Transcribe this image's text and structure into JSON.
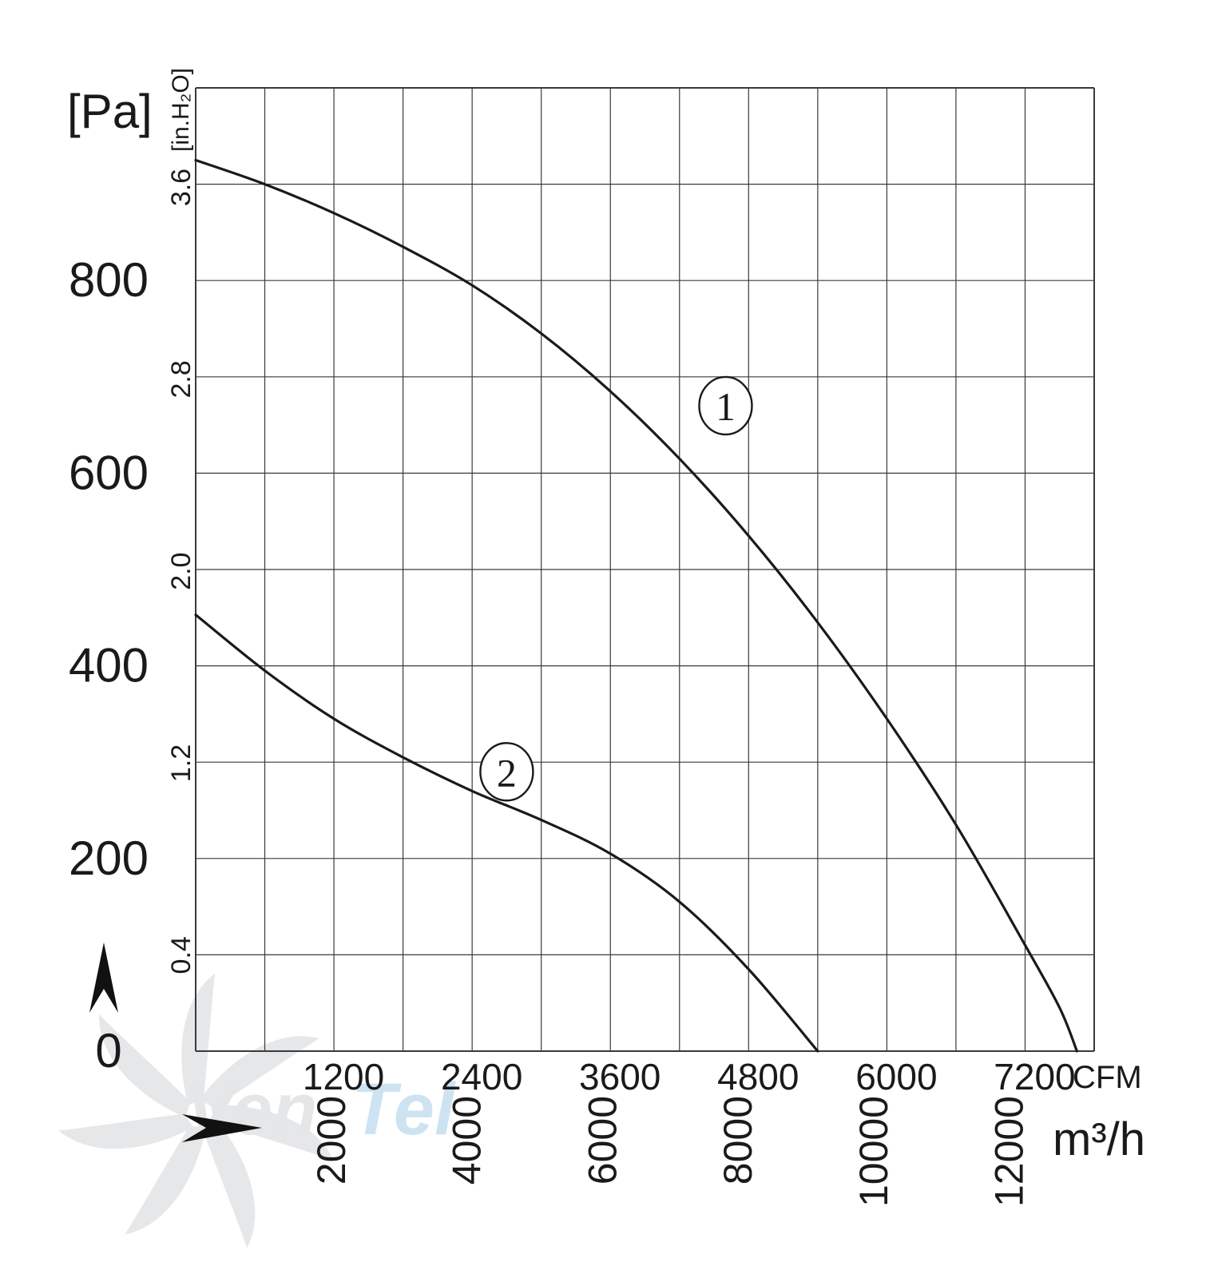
{
  "chart_data": {
    "type": "line",
    "title": "",
    "xlabel": "CFM",
    "xlabel_secondary": "m³/h",
    "ylabel": "[Pa]",
    "ylabel_secondary": "[in.H₂O]",
    "xlim": [
      0,
      7800
    ],
    "ylim": [
      0,
      1000
    ],
    "grid": true,
    "x_ticks": [
      1200,
      2400,
      3600,
      4800,
      6000,
      7200
    ],
    "x_tick_labels": [
      "1200",
      "2400",
      "3600",
      "4800",
      "6000",
      "7200"
    ],
    "x2_ticks": [
      2000,
      4000,
      6000,
      8000,
      10000,
      12000
    ],
    "x2_tick_labels": [
      "2000",
      "4000",
      "6000",
      "8000",
      "10000",
      "12000"
    ],
    "y_ticks": [
      0,
      200,
      400,
      600,
      800
    ],
    "y_tick_labels": [
      "0",
      "200",
      "400",
      "600",
      "800"
    ],
    "y2_ticks": [
      0.4,
      1.2,
      2.0,
      2.8,
      3.6
    ],
    "y2_tick_labels": [
      "0.4",
      "1.2",
      "2.0",
      "2.8",
      "3.6"
    ],
    "series": [
      {
        "name": "①",
        "label_at": [
          4600,
          670
        ],
        "x": [
          0,
          600,
          1200,
          1800,
          2400,
          3000,
          3600,
          4200,
          4800,
          5400,
          6000,
          6600,
          7200,
          7500,
          7650
        ],
        "y": [
          925,
          900,
          870,
          835,
          795,
          745,
          685,
          615,
          535,
          445,
          345,
          235,
          110,
          45,
          0
        ]
      },
      {
        "name": "②",
        "label_at": [
          2700,
          290
        ],
        "x": [
          0,
          600,
          1200,
          1800,
          2400,
          3000,
          3600,
          4200,
          4800,
          5400
        ],
        "y": [
          453,
          395,
          345,
          305,
          270,
          240,
          205,
          155,
          85,
          0
        ]
      }
    ]
  },
  "axis_arrows": {
    "y_arrow": "arrow-up-icon",
    "x_arrow": "arrow-right-icon"
  },
  "watermark": {
    "logo": "fan-logo-icon",
    "text_a": "Ven",
    "text_b": "Tel",
    "color_a": "#e4e6e8",
    "color_b": "#cde3f1"
  },
  "colors": {
    "curve": "#1a1a1a",
    "grid": "#3a3a3a",
    "frame": "#333333"
  }
}
